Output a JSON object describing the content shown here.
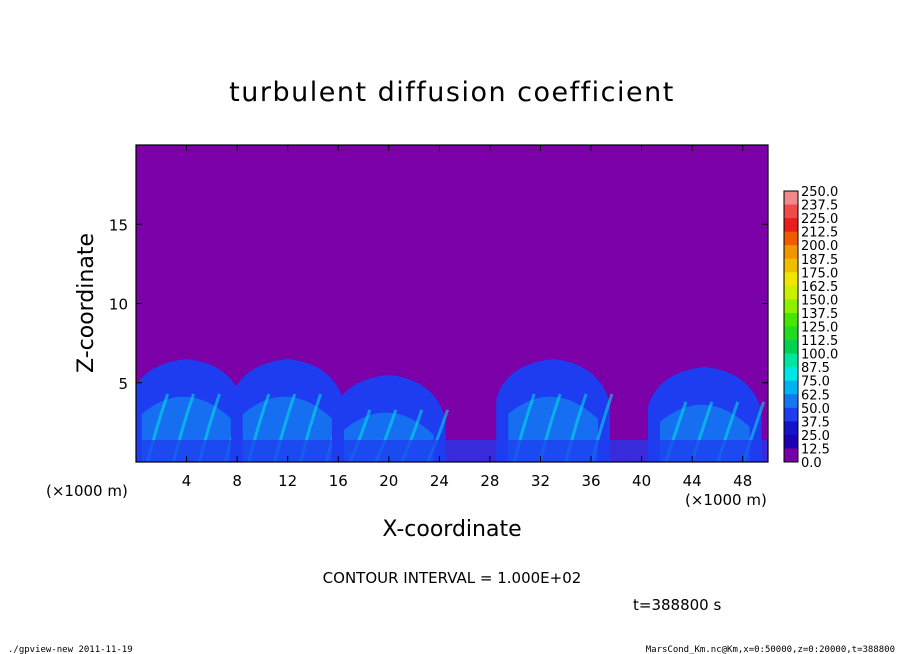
{
  "chart_data": {
    "type": "heatmap",
    "title": "turbulent diffusion coefficient",
    "xlabel": "X-coordinate",
    "ylabel": "Z-coordinate",
    "x_unit_left": "(×1000 m)",
    "x_unit_right": "(×1000 m)",
    "xlim": [
      0,
      50
    ],
    "ylim": [
      0,
      20
    ],
    "x_ticks": [
      4,
      8,
      12,
      16,
      20,
      24,
      28,
      32,
      36,
      40,
      44,
      48
    ],
    "y_ticks": [
      5,
      10,
      15
    ],
    "background_value_color": "#7b00a8",
    "contour_interval_text": "CONTOUR INTERVAL = 1.000E+02",
    "time_text": "t=388800 s",
    "footer_left": "./gpview-new   2011-11-19",
    "footer_right": "MarsCond_Km.nc@Km,x=0:50000,z=0:20000,t=388800",
    "colorbar": {
      "levels": [
        "250.0",
        "237.5",
        "225.0",
        "212.5",
        "200.0",
        "187.5",
        "175.0",
        "162.5",
        "150.0",
        "137.5",
        "125.0",
        "112.5",
        "100.0",
        "87.5",
        "75.0",
        "62.5",
        "50.0",
        "37.5",
        "25.0",
        "12.5",
        "0.0"
      ],
      "colors": [
        "#f08a8a",
        "#f04a4a",
        "#e81e1e",
        "#f05a00",
        "#f09600",
        "#f0be00",
        "#f0e600",
        "#c8f000",
        "#8cf000",
        "#46e600",
        "#1edc1e",
        "#00d250",
        "#00e6a0",
        "#00e6e6",
        "#00b4f0",
        "#1478f0",
        "#1e3cf0",
        "#1414c8",
        "#1e00b4",
        "#7800a8"
      ]
    },
    "regions": [
      {
        "x_center": 4,
        "z_top": 6.5,
        "value": 30
      },
      {
        "x_center": 12,
        "z_top": 6.5,
        "value": 30
      },
      {
        "x_center": 20,
        "z_top": 5.5,
        "value": 30
      },
      {
        "x_center": 33,
        "z_top": 6.5,
        "value": 30
      },
      {
        "x_center": 45,
        "z_top": 6.0,
        "value": 30
      }
    ]
  }
}
